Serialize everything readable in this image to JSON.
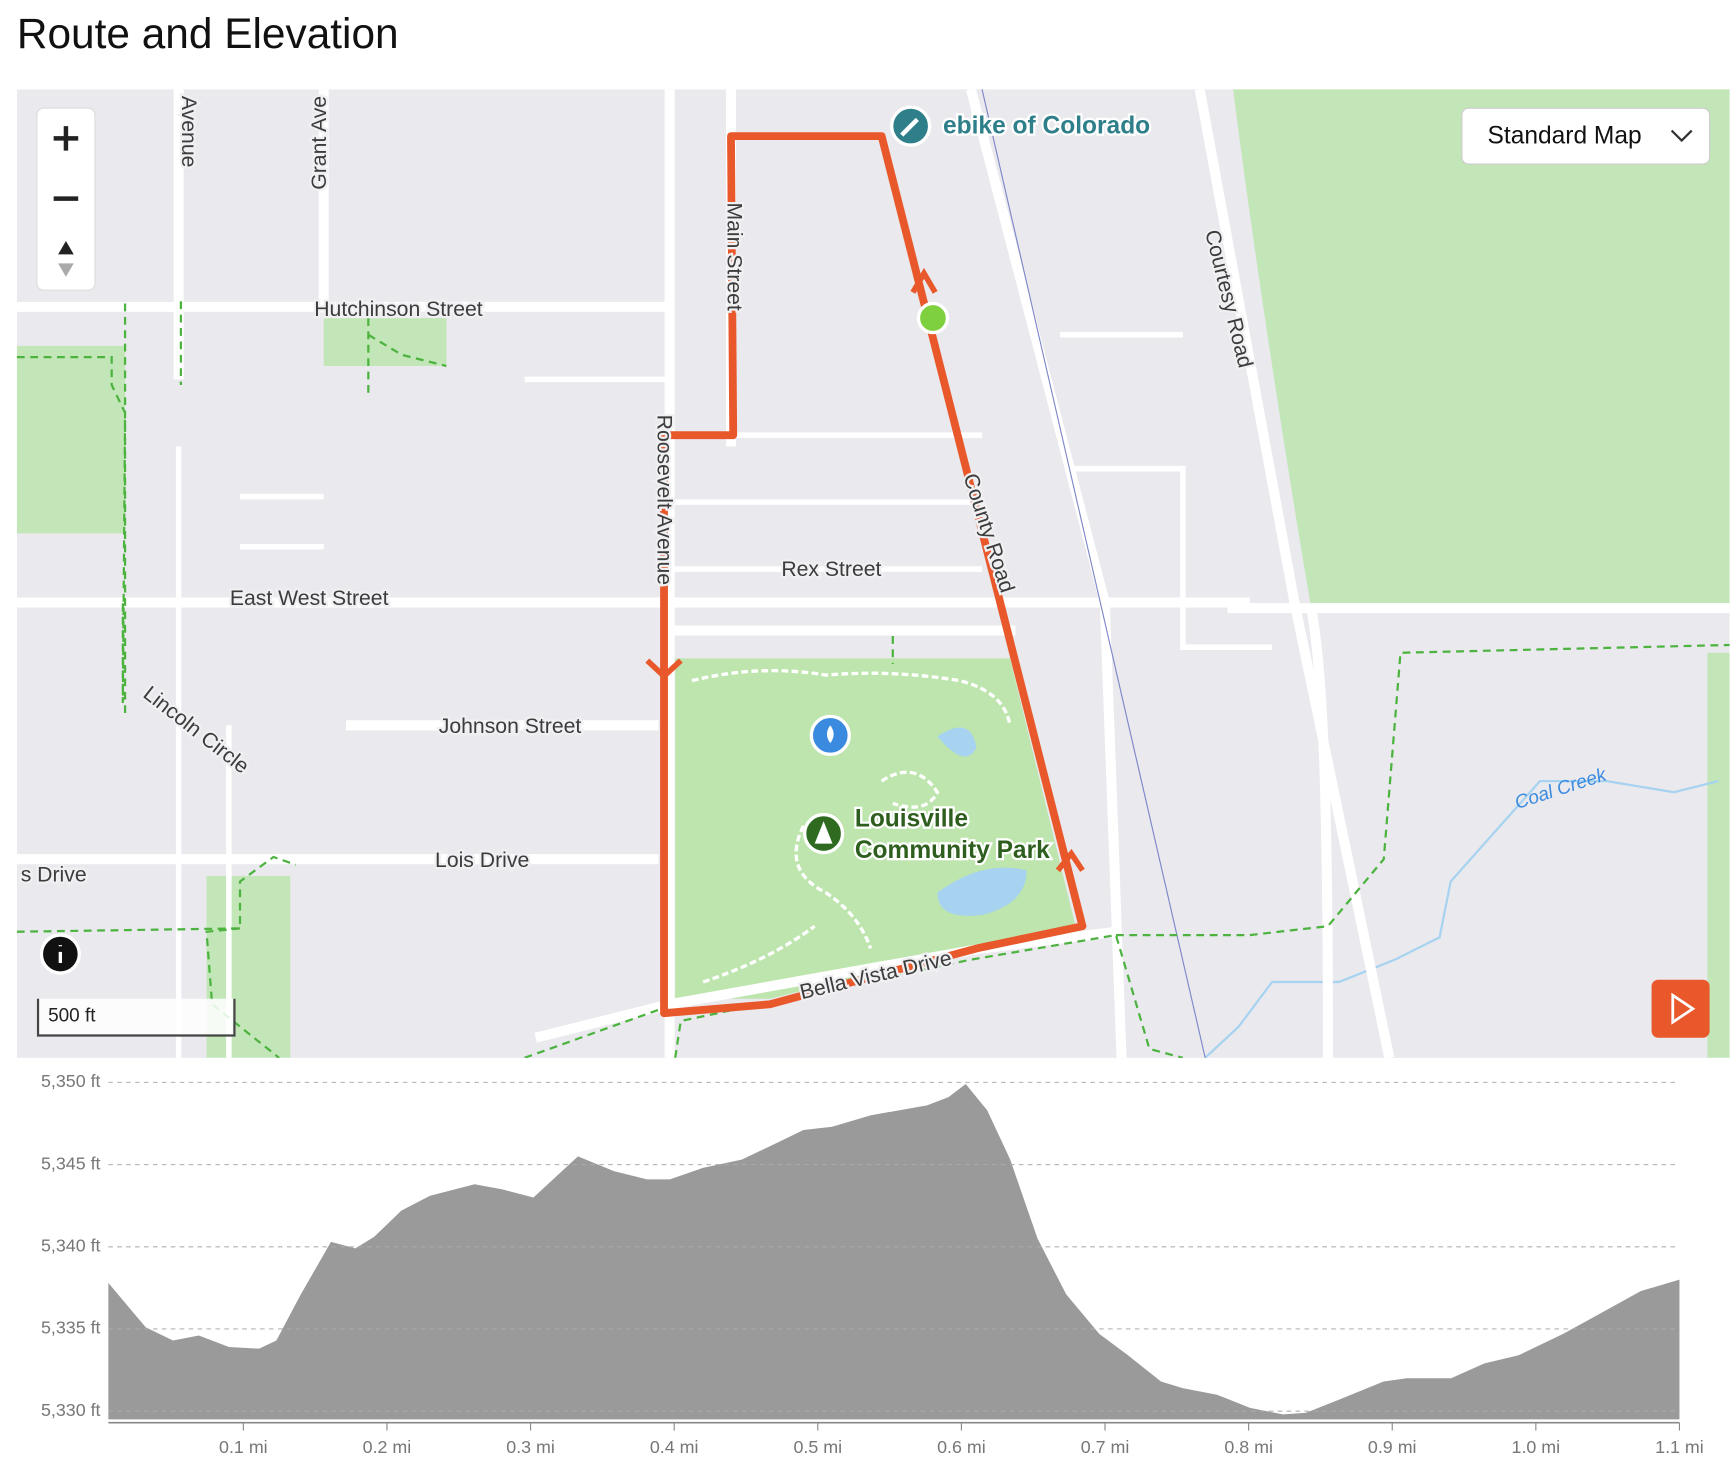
{
  "title": "Route and Elevation",
  "map": {
    "view_selector": "Standard Map",
    "scale": "500 ft",
    "streets": [
      "Avenue",
      "Grant Ave",
      "Hutchinson Street",
      "Main Street",
      "Roosevelt Avenue",
      "County Road",
      "Courtesy Road",
      "Rex Street",
      "East West Street",
      "Lincoln Circle",
      "Johnson Street",
      "Lois Drive",
      "s Drive",
      "Bella Vista Drive"
    ],
    "pois": [
      "ebike of Colorado",
      "Louisville",
      "Community Park"
    ],
    "water": "Coal Creek"
  },
  "chart_data": {
    "type": "area",
    "color": "#9a9a9a",
    "grid": true,
    "x": [
      0.006,
      0.032,
      0.051,
      0.069,
      0.09,
      0.111,
      0.123,
      0.14,
      0.161,
      0.178,
      0.191,
      0.21,
      0.23,
      0.261,
      0.28,
      0.302,
      0.333,
      0.358,
      0.381,
      0.397,
      0.42,
      0.447,
      0.471,
      0.49,
      0.51,
      0.537,
      0.576,
      0.591,
      0.603,
      0.618,
      0.634,
      0.653,
      0.673,
      0.696,
      0.716,
      0.739,
      0.754,
      0.778,
      0.801,
      0.824,
      0.84,
      0.863,
      0.894,
      0.91,
      0.941,
      0.964,
      0.988,
      1.019,
      1.042,
      1.073,
      1.1
    ],
    "values": [
      5337.8,
      5335.1,
      5334.3,
      5334.6,
      5333.9,
      5333.8,
      5334.3,
      5337.1,
      5340.3,
      5339.9,
      5340.6,
      5342.2,
      5343.1,
      5343.8,
      5343.5,
      5343.0,
      5345.5,
      5344.6,
      5344.1,
      5344.1,
      5344.8,
      5345.3,
      5346.3,
      5347.1,
      5347.3,
      5348.0,
      5348.6,
      5349.1,
      5349.9,
      5348.3,
      5345.3,
      5340.5,
      5337.1,
      5334.7,
      5333.4,
      5331.8,
      5331.4,
      5331.0,
      5330.2,
      5329.8,
      5329.9,
      5330.7,
      5331.8,
      5332.0,
      5332.0,
      5332.9,
      5333.4,
      5334.7,
      5335.8,
      5337.3,
      5338.0
    ],
    "xlim": [
      0,
      1.1
    ],
    "ylim": [
      5329.5,
      5350
    ],
    "xticks": [
      {
        "value": 0.1,
        "label": "0.1 mi"
      },
      {
        "value": 0.2,
        "label": "0.2 mi"
      },
      {
        "value": 0.3,
        "label": "0.3 mi"
      },
      {
        "value": 0.4,
        "label": "0.4 mi"
      },
      {
        "value": 0.5,
        "label": "0.5 mi"
      },
      {
        "value": 0.6,
        "label": "0.6 mi"
      },
      {
        "value": 0.7,
        "label": "0.7 mi"
      },
      {
        "value": 0.8,
        "label": "0.8 mi"
      },
      {
        "value": 0.9,
        "label": "0.9 mi"
      },
      {
        "value": 1.0,
        "label": "1.0 mi"
      },
      {
        "value": 1.1,
        "label": "1.1 mi"
      }
    ],
    "yticks": [
      {
        "value": 5330,
        "label": "5,330 ft"
      },
      {
        "value": 5335,
        "label": "5,335 ft"
      },
      {
        "value": 5340,
        "label": "5,340 ft"
      },
      {
        "value": 5345,
        "label": "5,345 ft"
      },
      {
        "value": 5350,
        "label": "5,350 ft"
      }
    ]
  }
}
